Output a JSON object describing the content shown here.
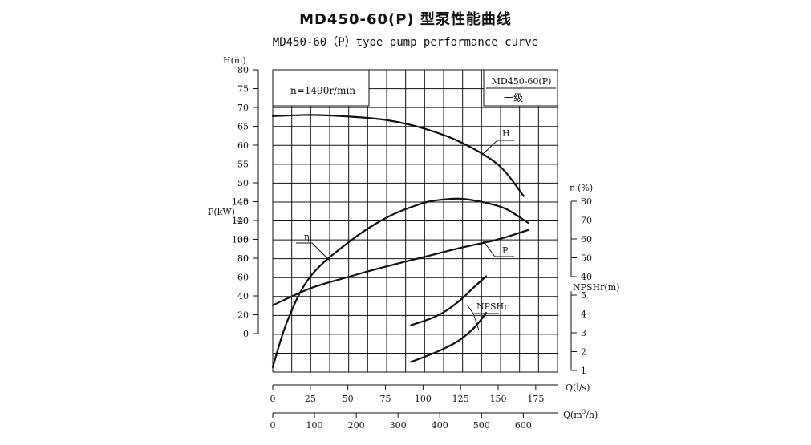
{
  "title": "MD450-60(P) 型泵性能曲线",
  "subtitle": "MD450-60（P）type pump performance curve",
  "chart_data": {
    "type": "line",
    "speed_label": "n=1490r/min",
    "model_label": "MD450-60(P)",
    "stage_label": "一级",
    "x_axes": [
      {
        "label": "Q(l/s)",
        "ticks": [
          0,
          25,
          50,
          75,
          100,
          125,
          150,
          175
        ],
        "range": [
          0,
          189.5
        ]
      },
      {
        "label": "Q(m³/h)",
        "label_main": "Q(m",
        "label_sup": "3",
        "label_end": "/h)",
        "ticks": [
          0,
          100,
          200,
          300,
          400,
          500,
          600
        ],
        "range": [
          0,
          682
        ]
      }
    ],
    "y_axes": [
      {
        "name": "H",
        "label": "H(m)",
        "ticks": [
          30,
          35,
          40,
          45,
          50,
          55,
          60,
          65,
          70,
          75,
          80
        ]
      },
      {
        "name": "P",
        "label": "P(kW)",
        "ticks": [
          0,
          20,
          40,
          60,
          80,
          100,
          120,
          140
        ]
      },
      {
        "name": "eta",
        "label": "η (%)",
        "ticks": [
          40,
          50,
          60,
          70,
          80
        ]
      },
      {
        "name": "npsh",
        "label": "NPSHr(m)",
        "ticks": [
          1,
          2,
          3,
          4,
          5
        ]
      }
    ],
    "series": [
      {
        "name": "H",
        "axis": "H",
        "x": [
          0,
          25,
          50,
          75,
          100,
          125,
          150,
          167
        ],
        "y": [
          67.7,
          68,
          67.6,
          66.7,
          64.5,
          60.8,
          54.8,
          46.5
        ]
      },
      {
        "name": "η",
        "axis": "eta",
        "x": [
          0,
          10,
          25,
          50,
          75,
          100,
          115,
          125,
          140,
          155,
          170
        ],
        "y": [
          -8,
          17,
          40,
          58,
          71,
          79,
          81,
          81.3,
          79.5,
          76,
          68.5
        ]
      },
      {
        "name": "P",
        "axis": "P",
        "x": [
          0,
          25,
          50,
          75,
          100,
          125,
          150,
          170
        ],
        "y": [
          30,
          48,
          60,
          71,
          81,
          91,
          100,
          110
        ]
      },
      {
        "name": "NPSHr",
        "axis": "npsh",
        "x": [
          92,
          105,
          115,
          125,
          135,
          142
        ],
        "y": [
          3.4,
          3.75,
          4.15,
          4.75,
          5.5,
          6.0
        ]
      },
      {
        "name": "NPSHr",
        "axis": "npsh",
        "x": [
          92,
          105,
          115,
          125,
          135,
          142
        ],
        "y": [
          1.45,
          1.85,
          2.2,
          2.65,
          3.35,
          4.05
        ]
      }
    ],
    "grid": true
  }
}
